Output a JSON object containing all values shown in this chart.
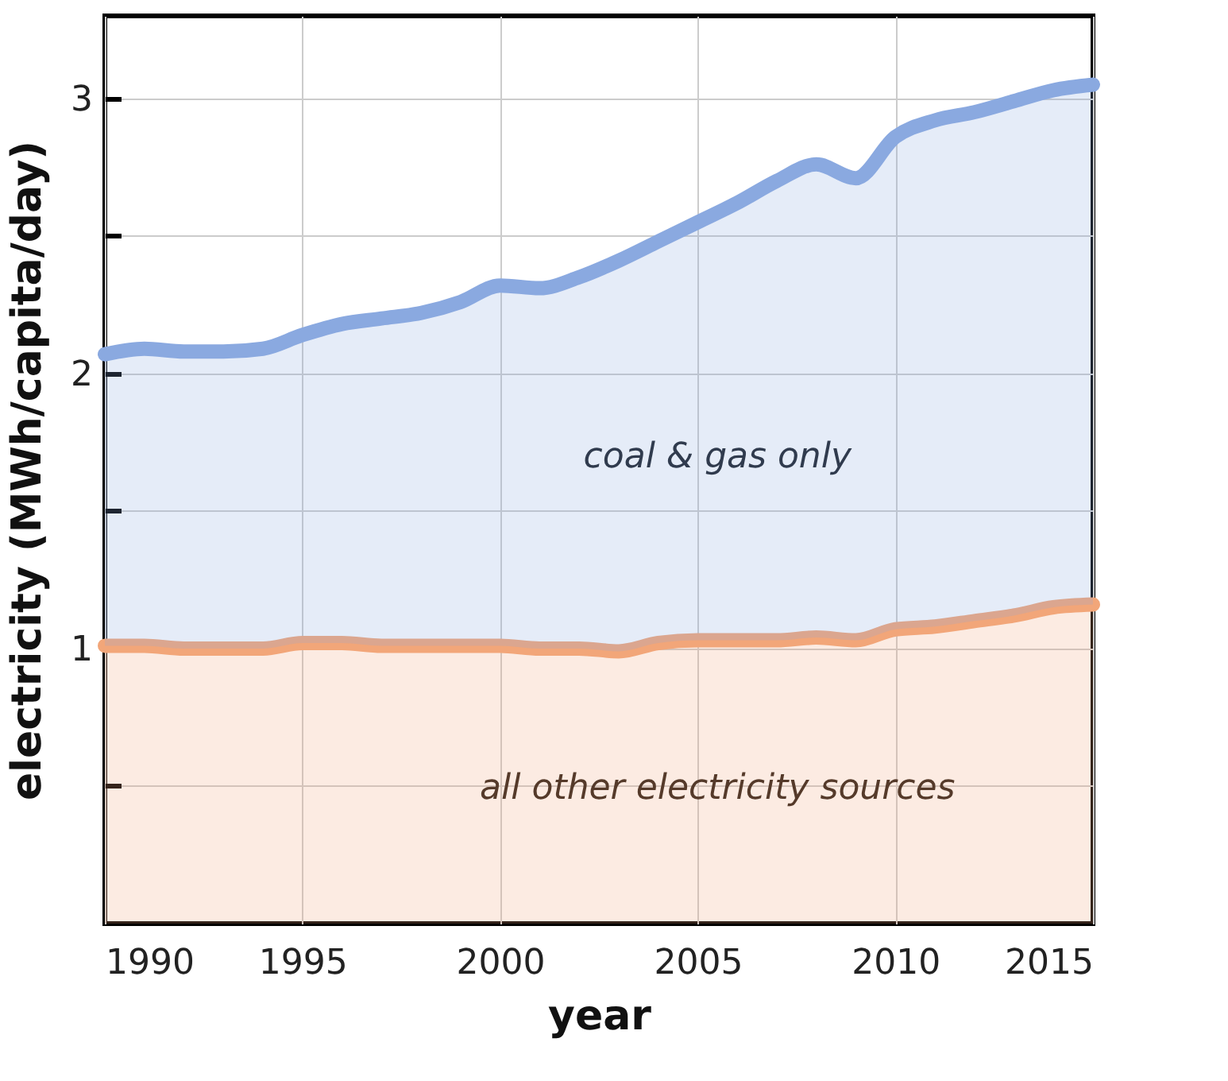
{
  "chart_data": {
    "type": "area",
    "xlabel": "year",
    "ylabel": "electricity (MWh/capita/day)",
    "x": [
      1990,
      1991,
      1992,
      1993,
      1994,
      1995,
      1996,
      1997,
      1998,
      1999,
      2000,
      2001,
      2002,
      2003,
      2004,
      2005,
      2006,
      2007,
      2008,
      2009,
      2010,
      2011,
      2012,
      2013,
      2014,
      2015
    ],
    "series": [
      {
        "name": "all other electricity sources",
        "color": "#f2a679",
        "values": [
          1.01,
          1.01,
          1.0,
          1.0,
          1.0,
          1.02,
          1.02,
          1.01,
          1.01,
          1.01,
          1.01,
          1.0,
          1.0,
          0.99,
          1.02,
          1.03,
          1.03,
          1.03,
          1.04,
          1.03,
          1.07,
          1.08,
          1.1,
          1.12,
          1.15,
          1.16
        ]
      },
      {
        "name": "coal & gas only",
        "color": "#8aa9e0",
        "values": [
          2.07,
          2.09,
          2.08,
          2.08,
          2.09,
          2.14,
          2.18,
          2.2,
          2.22,
          2.26,
          2.32,
          2.31,
          2.35,
          2.41,
          2.48,
          2.55,
          2.62,
          2.7,
          2.76,
          2.71,
          2.86,
          2.92,
          2.95,
          2.99,
          3.03,
          3.05
        ]
      }
    ],
    "xlim": [
      1990,
      2015
    ],
    "xticks": [
      1990,
      1995,
      2000,
      2005,
      2010,
      2015
    ],
    "ylim": [
      0,
      3.3
    ],
    "yticks": [
      {
        "value": 0.5,
        "label": null
      },
      1,
      {
        "value": 1.5,
        "label": null
      },
      2,
      {
        "value": 2.5,
        "label": null
      },
      3
    ],
    "grid": true
  }
}
